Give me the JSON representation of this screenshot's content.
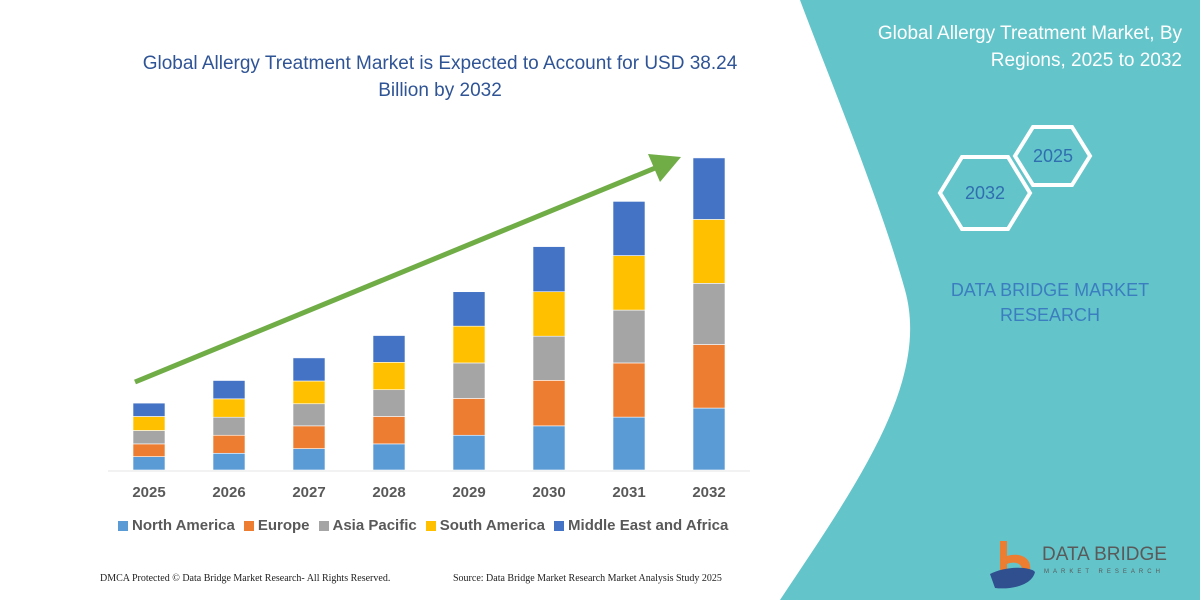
{
  "title": "Global Allergy Treatment Market is Expected to Account for USD 38.24 Billion by 2032",
  "side_panel": {
    "title": "Global Allergy Treatment Market, By Regions, 2025 to 2032",
    "hex_start": "2025",
    "hex_end": "2032",
    "brand": "DATA BRIDGE MARKET RESEARCH",
    "logo_name": "DATA BRIDGE",
    "logo_sub": "MARKET RESEARCH",
    "color": "#63c4ca"
  },
  "footer": {
    "left": "DMCA Protected © Data Bridge Market Research-  All Rights Reserved.",
    "right": "Source: Data Bridge Market Research  Market Analysis Study 2025"
  },
  "chart_data": {
    "type": "bar",
    "stacked": true,
    "categories": [
      "2025",
      "2026",
      "2027",
      "2028",
      "2029",
      "2030",
      "2031",
      "2032"
    ],
    "series": [
      {
        "name": "North America",
        "color": "#5b9bd5",
        "values": [
          1.64,
          2.05,
          2.62,
          3.2,
          4.26,
          5.41,
          6.48,
          7.59
        ]
      },
      {
        "name": "Europe",
        "color": "#ed7d31",
        "values": [
          1.56,
          2.21,
          2.79,
          3.36,
          4.51,
          5.58,
          6.64,
          7.79
        ]
      },
      {
        "name": "Asia Pacific",
        "color": "#a5a5a5",
        "values": [
          1.64,
          2.21,
          2.71,
          3.28,
          4.35,
          5.41,
          6.48,
          7.5
        ]
      },
      {
        "name": "South America",
        "color": "#ffc000",
        "values": [
          1.72,
          2.25,
          2.79,
          3.36,
          4.51,
          5.45,
          6.68,
          7.83
        ]
      },
      {
        "name": "Middle East and Africa",
        "color": "#4472c4",
        "values": [
          1.64,
          2.25,
          2.83,
          3.28,
          4.22,
          5.53,
          6.64,
          7.54
        ]
      }
    ],
    "ylim": [
      0,
      38.24
    ],
    "grid": false,
    "trend_arrow": {
      "color": "#70ad47"
    },
    "legend": "bottom",
    "xlabel": "",
    "ylabel": ""
  }
}
